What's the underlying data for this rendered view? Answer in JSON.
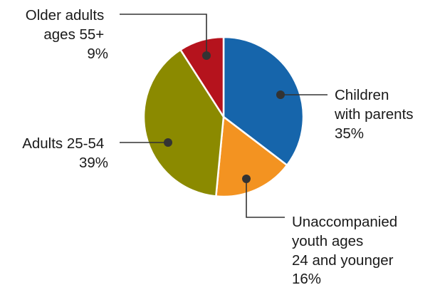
{
  "chart_data": {
    "type": "pie",
    "slices": [
      {
        "label": [
          "Children",
          "with parents"
        ],
        "value": 35,
        "value_text": "35%",
        "color": "#1665ab"
      },
      {
        "label": [
          "Unaccompanied",
          "youth ages",
          "24 and younger"
        ],
        "value": 16,
        "value_text": "16%",
        "color": "#f39321"
      },
      {
        "label": [
          "Adults 25-54"
        ],
        "value": 39,
        "value_text": "39%",
        "color": "#8b8a00"
      },
      {
        "label": [
          "Older adults",
          "ages 55+"
        ],
        "value": 9,
        "value_text": "9%",
        "color": "#b5131d"
      }
    ]
  }
}
